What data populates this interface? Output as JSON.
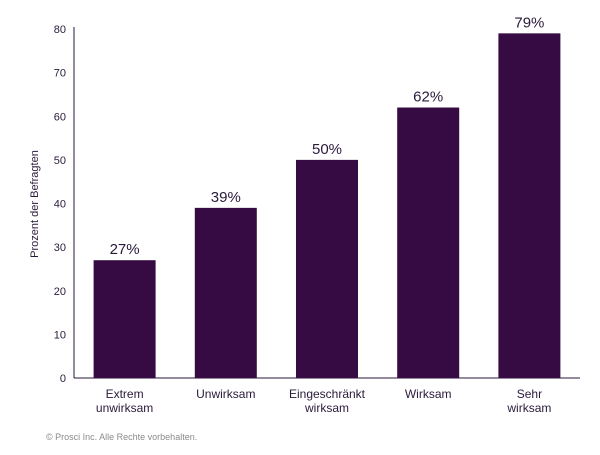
{
  "chart_data": {
    "type": "bar",
    "categories": [
      [
        "Extrem",
        "unwirksam"
      ],
      [
        "Unwirksam"
      ],
      [
        "Eingeschränkt",
        "wirksam"
      ],
      [
        "Wirksam"
      ],
      [
        "Sehr",
        "wirksam"
      ]
    ],
    "values": [
      27,
      39,
      50,
      62,
      79
    ],
    "data_labels": [
      "27%",
      "39%",
      "50%",
      "62%",
      "79%"
    ],
    "ylabel": "Prozent der Befragten",
    "ylim": [
      0,
      80
    ],
    "yticks": [
      0,
      10,
      20,
      30,
      40,
      50,
      60,
      70,
      80
    ],
    "bar_color": "#360a42",
    "grid": false
  },
  "footer": {
    "copyright": "© Prosci Inc. Alle Rechte vorbehalten."
  }
}
